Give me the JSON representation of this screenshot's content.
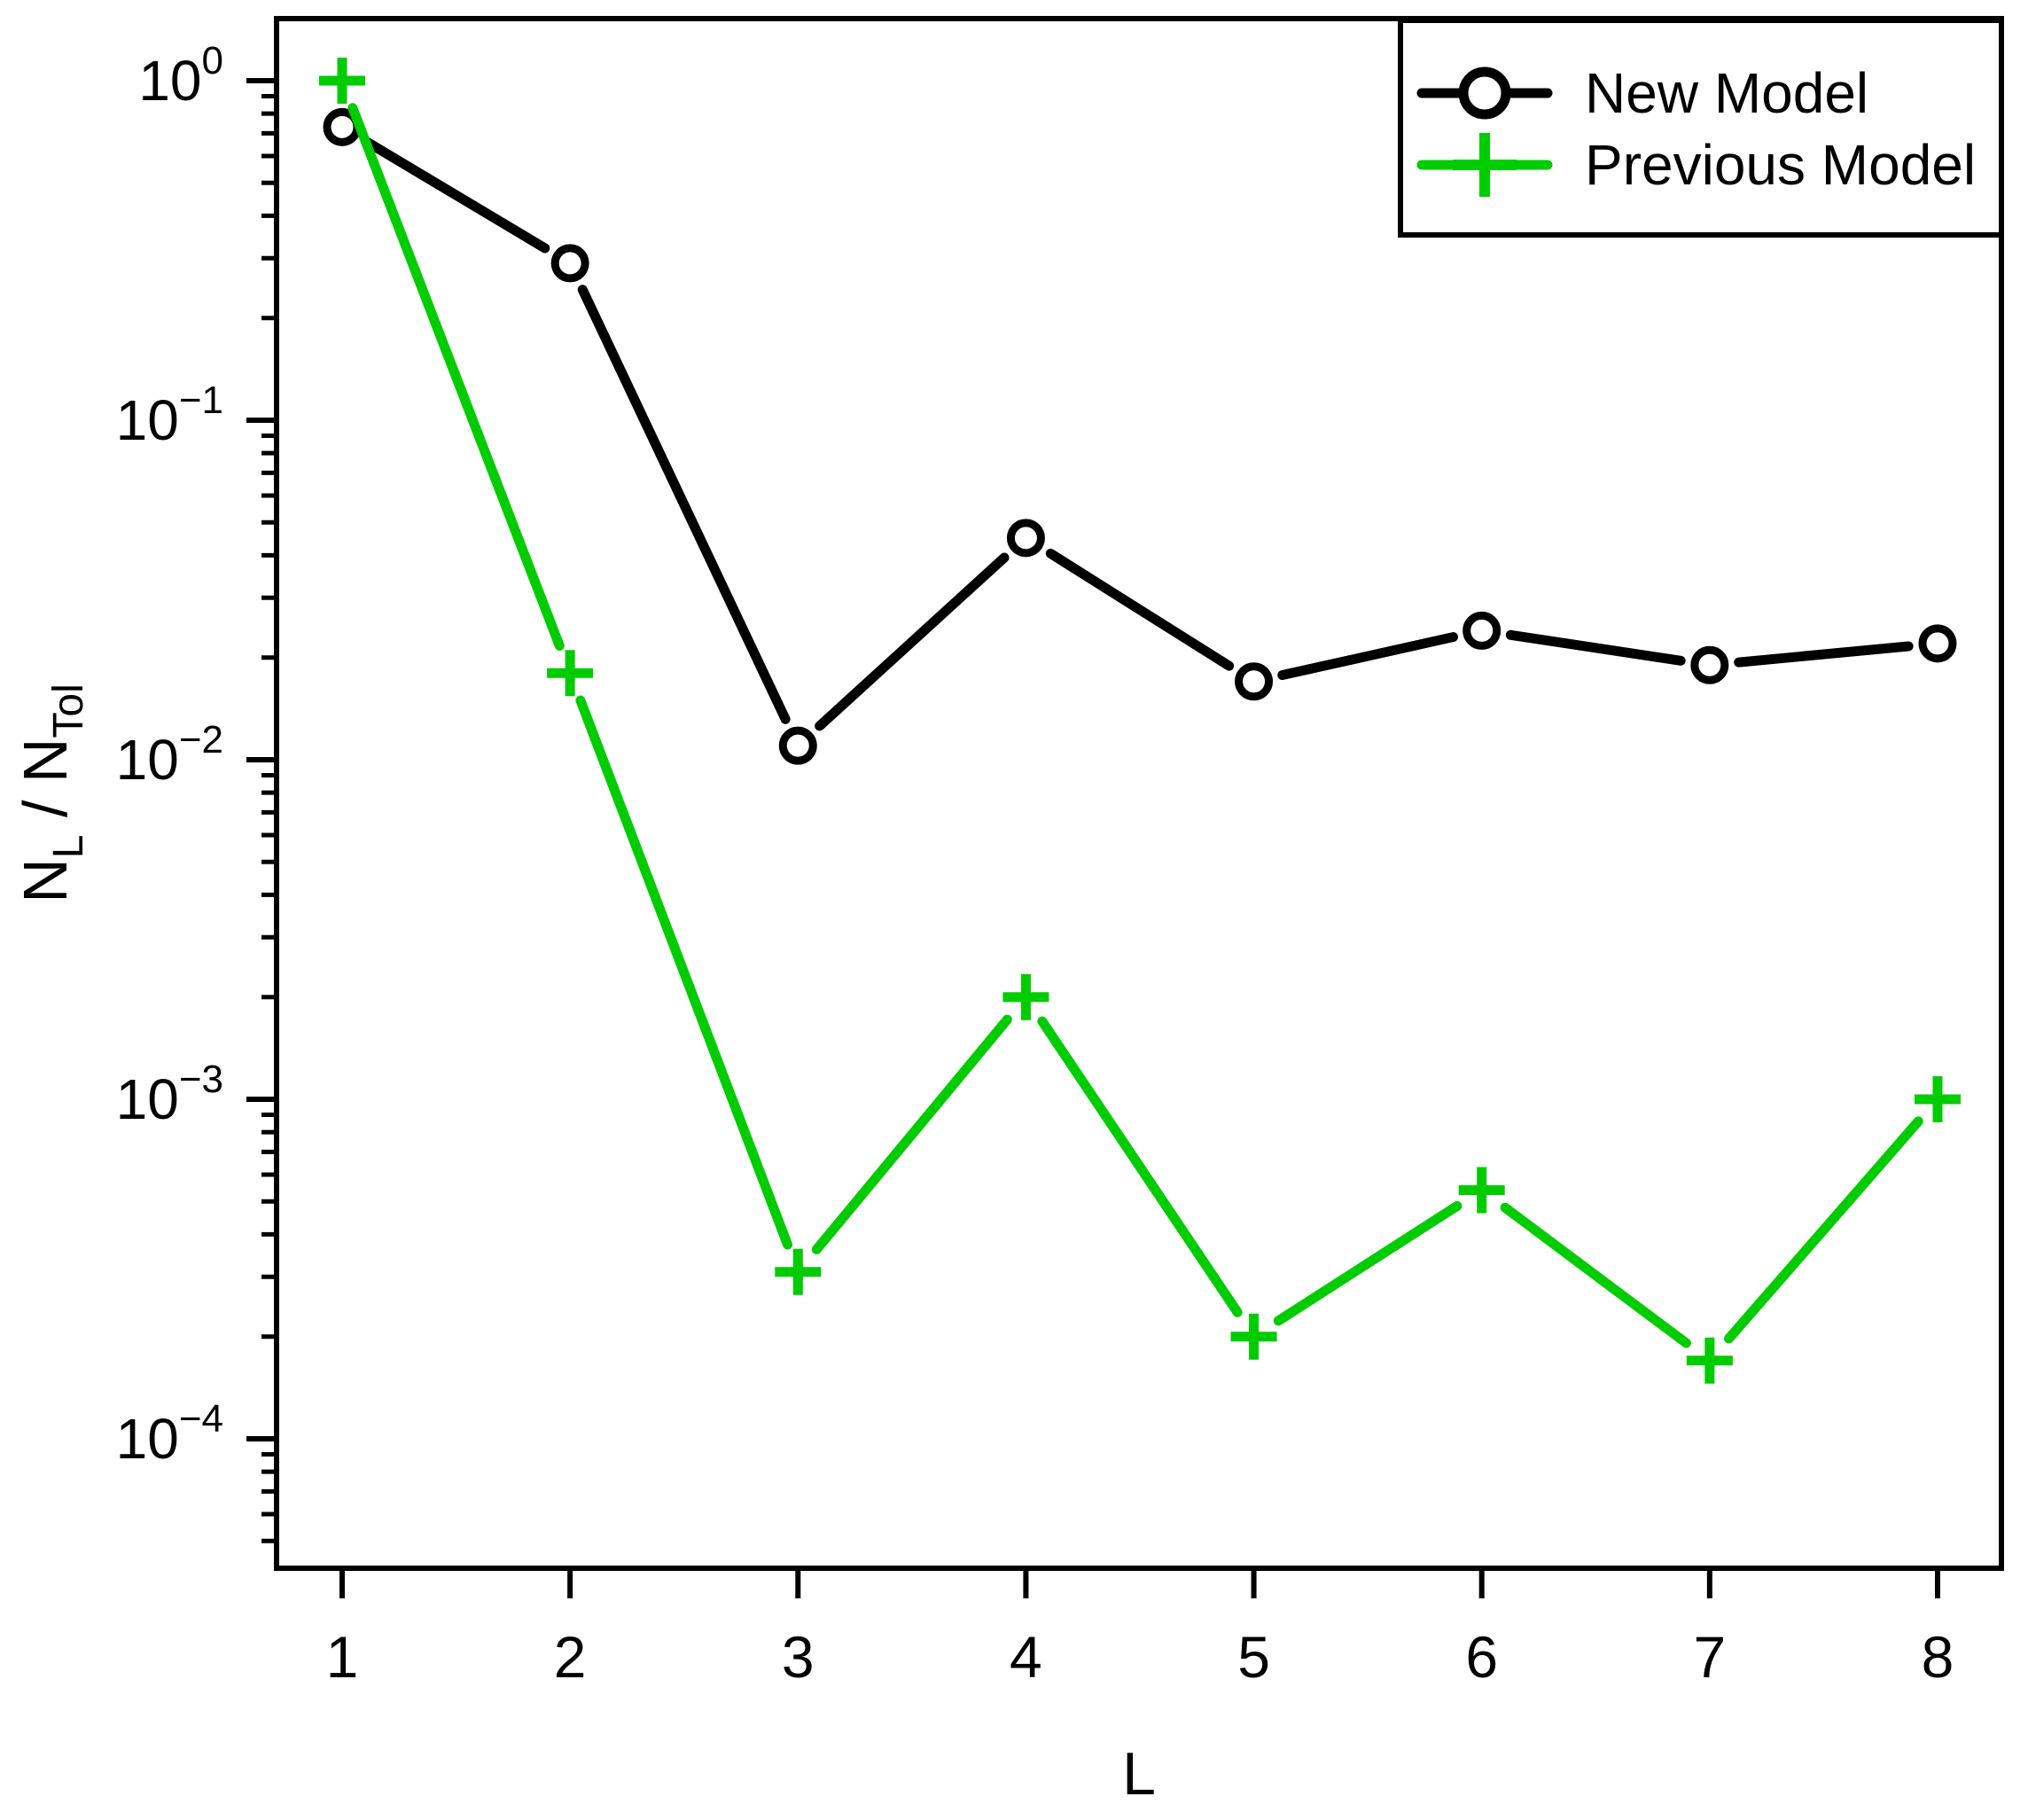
{
  "chart_data": {
    "type": "line",
    "title": "",
    "xlabel": "L",
    "ylabel": "N_L / N_Tol",
    "ylabel_parts": [
      {
        "text": "N",
        "sub": false
      },
      {
        "text": "L",
        "sub": true
      },
      {
        "text": " / N",
        "sub": false
      },
      {
        "text": "Tol",
        "sub": true
      }
    ],
    "yscale": "log",
    "xlim": [
      0.71,
      8.28
    ],
    "ylim": [
      4.2e-05,
      1.52
    ],
    "grid": false,
    "x": [
      1,
      2,
      3,
      4,
      5,
      6,
      7,
      8
    ],
    "xtick_labels": [
      "1",
      "2",
      "3",
      "4",
      "5",
      "6",
      "7",
      "8"
    ],
    "ytick_exponents": [
      0,
      -1,
      -2,
      -3,
      -4
    ],
    "ytick_base": "10",
    "series": [
      {
        "name": "New Model",
        "color": "#000000",
        "marker": "circle",
        "values": [
          0.73,
          0.29,
          0.011,
          0.045,
          0.017,
          0.024,
          0.019,
          0.022
        ]
      },
      {
        "name": "Previous Model",
        "color": "#00CC00",
        "marker": "plus",
        "values": [
          1.0,
          0.018,
          0.00031,
          0.002,
          0.0002,
          0.00054,
          0.00017,
          0.001
        ]
      }
    ],
    "legend_position": "top-right",
    "legend": {
      "labels": [
        "New Model",
        "Previous Model"
      ]
    },
    "colors": {
      "axis": "#000000",
      "background": "#ffffff",
      "new_model": "#000000",
      "previous_model": "#00CC00"
    }
  }
}
